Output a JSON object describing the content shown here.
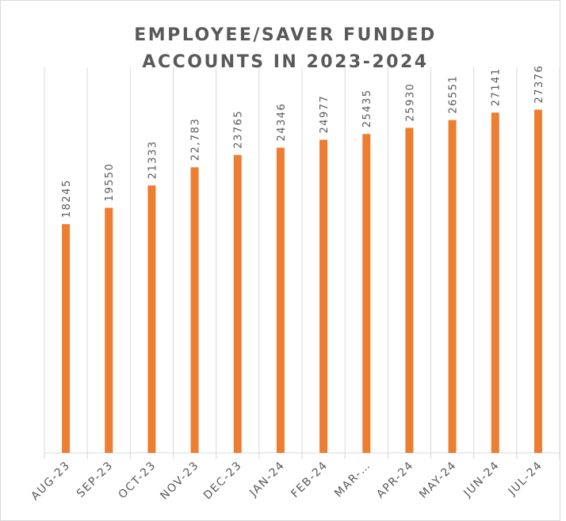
{
  "chart_data": {
    "type": "bar",
    "title": "EMPLOYEE/SAVER FUNDED ACCOUNTS IN 2023-2024",
    "categories": [
      "AUG-23",
      "SEP-23",
      "OCT-23",
      "NOV-23",
      "DEC-23",
      "JAN-24",
      "FEB-24",
      "MAR-…",
      "APR-24",
      "MAY-24",
      "JUN-24",
      "JUL-24"
    ],
    "values": [
      18245,
      19550,
      21333,
      22783,
      23765,
      24346,
      24977,
      25435,
      25930,
      26551,
      27141,
      27376
    ],
    "value_labels": [
      "18245",
      "19550",
      "21333",
      "22,783",
      "23765",
      "24346",
      "24977",
      "25435",
      "25930",
      "26551",
      "27141",
      "27376"
    ],
    "color": "#ed7d31",
    "ylim": [
      0,
      30000
    ]
  }
}
